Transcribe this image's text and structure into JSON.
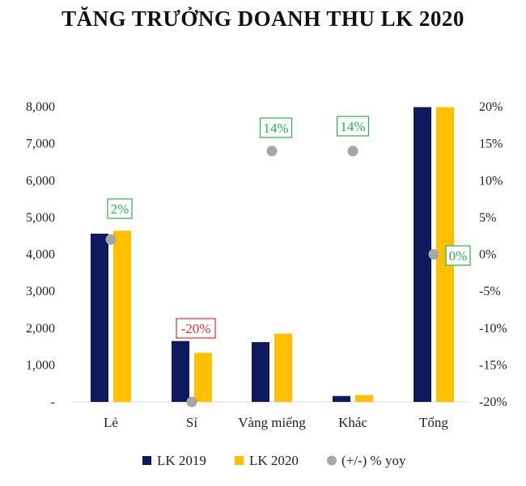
{
  "chart_data": {
    "type": "bar",
    "title": "TĂNG TRƯỞNG DOANH THU LK 2020",
    "categories": [
      "Lẻ",
      "Sỉ",
      "Vàng miếng",
      "Khác",
      "Tổng"
    ],
    "series": [
      {
        "name": "LK 2019",
        "axis": "left",
        "values": [
          4560,
          1650,
          1620,
          160,
          7990
        ],
        "color": "#0d1b5e"
      },
      {
        "name": "LK 2020",
        "axis": "left",
        "values": [
          4640,
          1330,
          1850,
          185,
          7990
        ],
        "color": "#ffc000"
      },
      {
        "name": "(+/-) % yoy",
        "axis": "right",
        "type": "scatter",
        "values": [
          2,
          -20,
          14,
          14,
          0
        ],
        "color": "#a6a6a6"
      }
    ],
    "data_labels": [
      "2%",
      "-20%",
      "14%",
      "14%",
      "0%"
    ],
    "label_colors": {
      "positive": "#2eb050",
      "negative": "#e03030"
    },
    "y_left": {
      "ylim": [
        0,
        8000
      ],
      "ticks": [
        0,
        1000,
        2000,
        3000,
        4000,
        5000,
        6000,
        7000,
        8000
      ],
      "tick_labels": [
        "-",
        "1,000",
        "2,000",
        "3,000",
        "4,000",
        "5,000",
        "6,000",
        "7,000",
        "8,000"
      ]
    },
    "y_right": {
      "ylim": [
        -20,
        20
      ],
      "ticks": [
        -20,
        -15,
        -10,
        -5,
        0,
        5,
        10,
        15,
        20
      ],
      "tick_labels": [
        "-20%",
        "-15%",
        "-10%",
        "-5%",
        "0%",
        "5%",
        "10%",
        "15%",
        "20%"
      ]
    },
    "grid": false,
    "legend": "bottom"
  }
}
